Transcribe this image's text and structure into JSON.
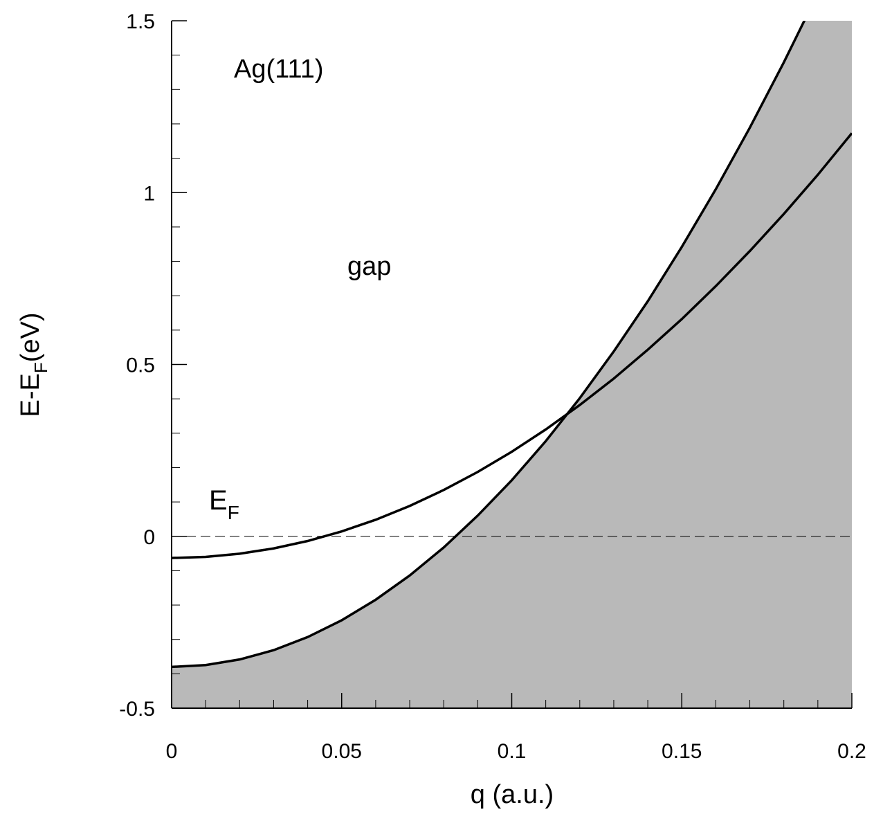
{
  "chart_data": {
    "type": "line",
    "xlabel": "q (a.u.)",
    "ylabel_parts": [
      "E-E",
      "F",
      "(eV)"
    ],
    "annotations": {
      "material": "Ag(111)",
      "gap": "gap",
      "fermi": [
        "E",
        "F"
      ]
    },
    "x": [
      0,
      0.01,
      0.02,
      0.03,
      0.04,
      0.05,
      0.06,
      0.07,
      0.08,
      0.09,
      0.1,
      0.11,
      0.12,
      0.13,
      0.14,
      0.15,
      0.16,
      0.17,
      0.18,
      0.19,
      0.2
    ],
    "series": [
      {
        "color": "#000000",
        "fill": "#b9b9b9",
        "values": [
          -0.38,
          -0.3746,
          -0.3583,
          -0.3313,
          -0.2931,
          -0.2443,
          -0.1845,
          -0.1139,
          -0.0325,
          0.0603,
          0.163,
          0.277,
          0.402,
          0.538,
          0.684,
          0.842,
          1.01,
          1.189,
          1.379,
          1.58,
          1.792
        ]
      },
      {
        "color": "#000000",
        "values": [
          -0.063,
          -0.0599,
          -0.0506,
          -0.0352,
          -0.0136,
          0.0143,
          0.0482,
          0.0884,
          0.1348,
          0.1873,
          0.246,
          0.3109,
          0.382,
          0.459,
          0.543,
          0.632,
          0.728,
          0.83,
          0.938,
          1.052,
          1.173
        ]
      }
    ],
    "reference_line": 0,
    "xlim": [
      0,
      0.2
    ],
    "ylim": [
      -0.5,
      1.5
    ],
    "xticks": [
      0,
      0.05,
      0.1,
      0.15,
      0.2
    ],
    "yticks": [
      -0.5,
      0,
      0.5,
      1,
      1.5
    ],
    "xminorticks": [
      0.01,
      0.02,
      0.03,
      0.04,
      0.06,
      0.07,
      0.08,
      0.09,
      0.11,
      0.12,
      0.13,
      0.14,
      0.16,
      0.17,
      0.18,
      0.19
    ],
    "yminorticks": [
      -0.4,
      -0.3,
      -0.2,
      -0.1,
      0.1,
      0.2,
      0.3,
      0.4,
      0.6,
      0.7,
      0.8,
      0.9,
      1.1,
      1.2,
      1.3,
      1.4
    ]
  }
}
